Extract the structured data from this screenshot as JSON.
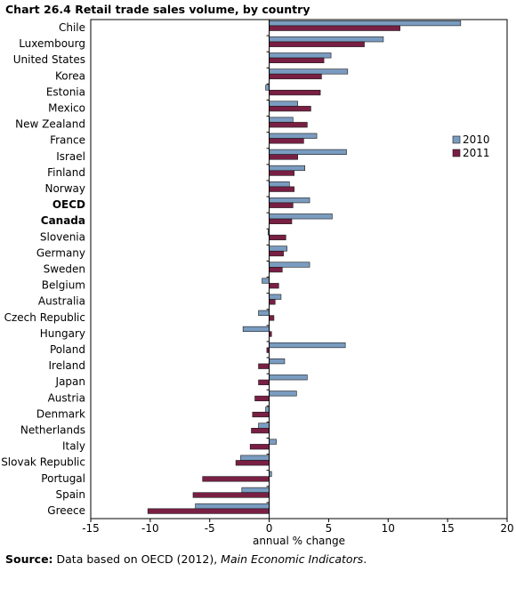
{
  "chart_data": {
    "type": "bar",
    "orientation": "horizontal",
    "title": "Chart 26.4  Retail trade sales volume, by country",
    "xlabel": "annual % change",
    "ylabel": "",
    "xlim": [
      -15,
      20
    ],
    "xticks": [
      "-15",
      "-10",
      "-5",
      "0",
      "5",
      "10",
      "15",
      "20"
    ],
    "grid": false,
    "legend_position": "right",
    "categories": [
      "Chile",
      "Luxembourg",
      "United States",
      "Korea",
      "Estonia",
      "Mexico",
      "New Zealand",
      "France",
      "Israel",
      "Finland",
      "Norway",
      "OECD",
      "Canada",
      "Slovenia",
      "Germany",
      "Sweden",
      "Belgium",
      "Australia",
      "Czech Republic",
      "Hungary",
      "Poland",
      "Ireland",
      "Japan",
      "Austria",
      "Denmark",
      "Netherlands",
      "Italy",
      "Slovak Republic",
      "Portugal",
      "Spain",
      "Greece"
    ],
    "bold_categories": [
      "OECD",
      "Canada"
    ],
    "series": [
      {
        "name": "2010",
        "color": "#7a9cc0",
        "values": [
          16.1,
          9.6,
          5.2,
          6.6,
          -0.3,
          2.4,
          2.0,
          4.0,
          6.5,
          3.0,
          1.7,
          3.4,
          5.3,
          -0.1,
          1.5,
          3.4,
          -0.6,
          1.0,
          -0.9,
          -2.2,
          6.4,
          1.3,
          3.2,
          2.3,
          -0.3,
          -0.9,
          0.6,
          -2.4,
          0.2,
          -2.3,
          -6.2
        ]
      },
      {
        "name": "2011",
        "color": "#7a1f44",
        "values": [
          11.0,
          8.0,
          4.6,
          4.4,
          4.3,
          3.5,
          3.2,
          2.9,
          2.4,
          2.1,
          2.1,
          2.0,
          1.9,
          1.4,
          1.2,
          1.1,
          0.8,
          0.5,
          0.4,
          0.2,
          -0.2,
          -0.9,
          -0.9,
          -1.2,
          -1.4,
          -1.5,
          -1.6,
          -2.8,
          -5.6,
          -6.4,
          -10.2
        ]
      }
    ]
  },
  "source": {
    "label": "Source:",
    "text": " Data based on OECD (2012), ",
    "publication": "Main Economic Indicators",
    "end": "."
  }
}
